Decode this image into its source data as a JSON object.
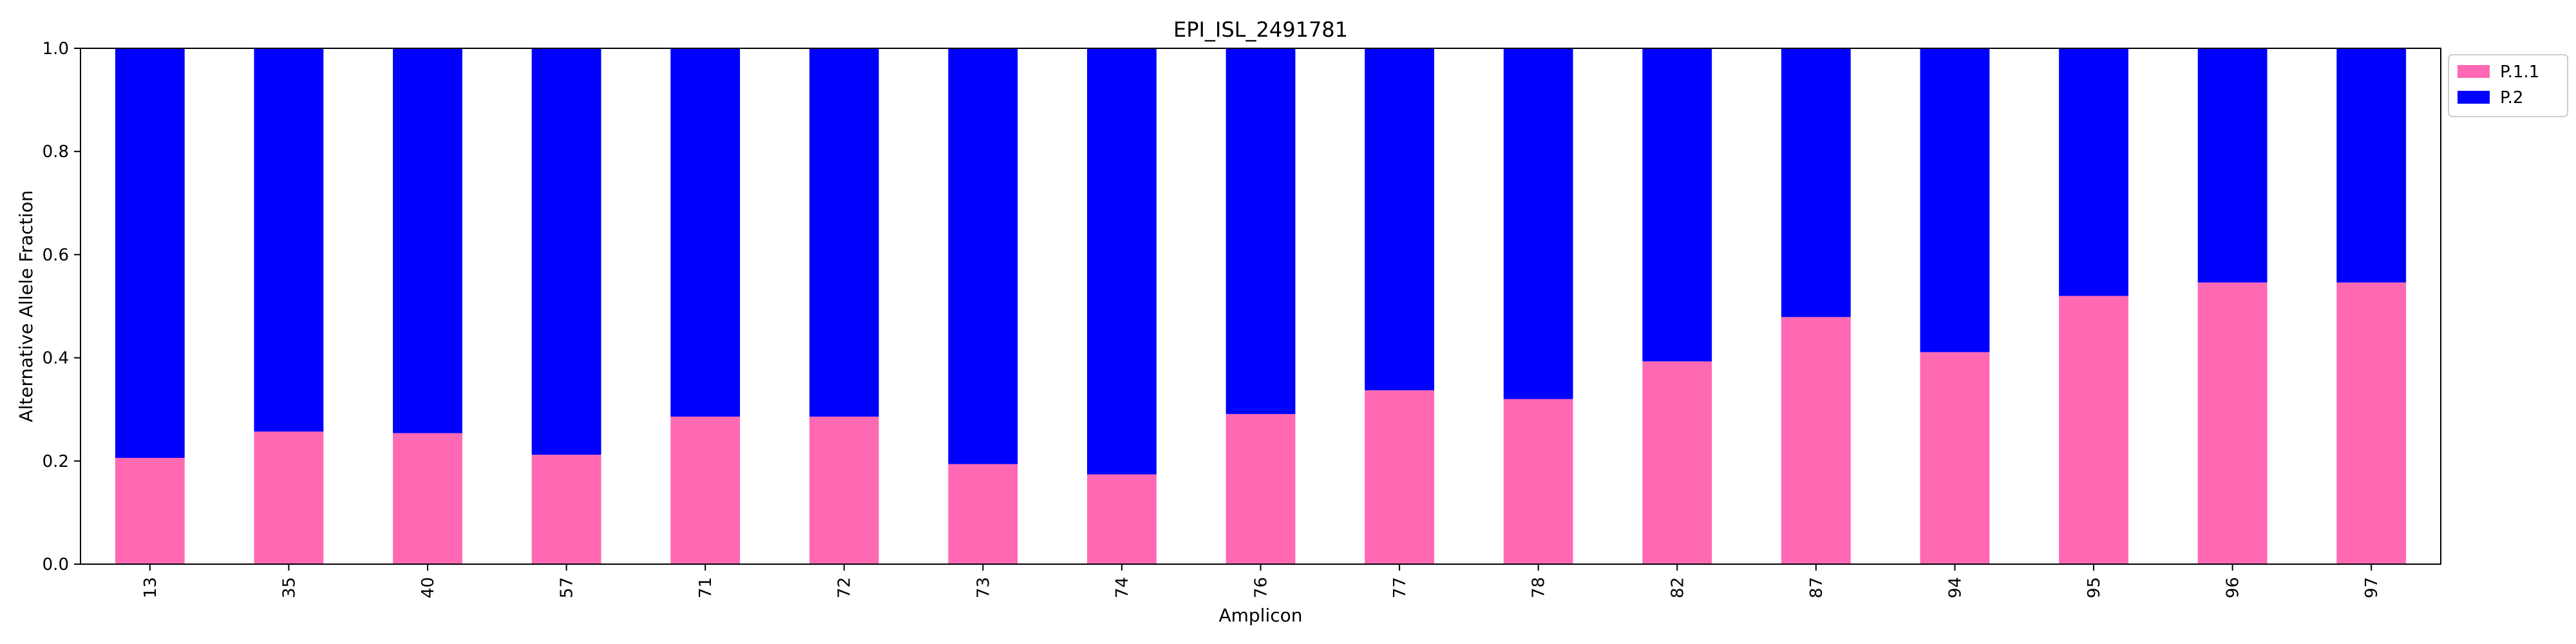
{
  "chart_data": {
    "type": "bar",
    "stacked": true,
    "title": "EPI_ISL_2491781",
    "xlabel": "Amplicon",
    "ylabel": "Alternative Allele Fraction",
    "ylim": [
      0,
      1.0
    ],
    "yticks": [
      "0.0",
      "0.2",
      "0.4",
      "0.6",
      "0.8",
      "1.0"
    ],
    "grid": false,
    "legend_position": "outside-top-right",
    "categories": [
      "13",
      "35",
      "40",
      "57",
      "71",
      "72",
      "73",
      "74",
      "76",
      "77",
      "78",
      "82",
      "87",
      "94",
      "95",
      "96",
      "97"
    ],
    "series": [
      {
        "name": "P.1.1",
        "color": "#ff69b4",
        "values": [
          0.206,
          0.257,
          0.254,
          0.212,
          0.286,
          0.286,
          0.194,
          0.174,
          0.291,
          0.337,
          0.32,
          0.393,
          0.479,
          0.411,
          0.52,
          0.546,
          0.546
        ]
      },
      {
        "name": "P.2",
        "color": "#0000ff",
        "values": [
          0.794,
          0.743,
          0.746,
          0.788,
          0.714,
          0.714,
          0.806,
          0.826,
          0.709,
          0.663,
          0.68,
          0.607,
          0.521,
          0.589,
          0.48,
          0.454,
          0.454
        ]
      }
    ]
  }
}
